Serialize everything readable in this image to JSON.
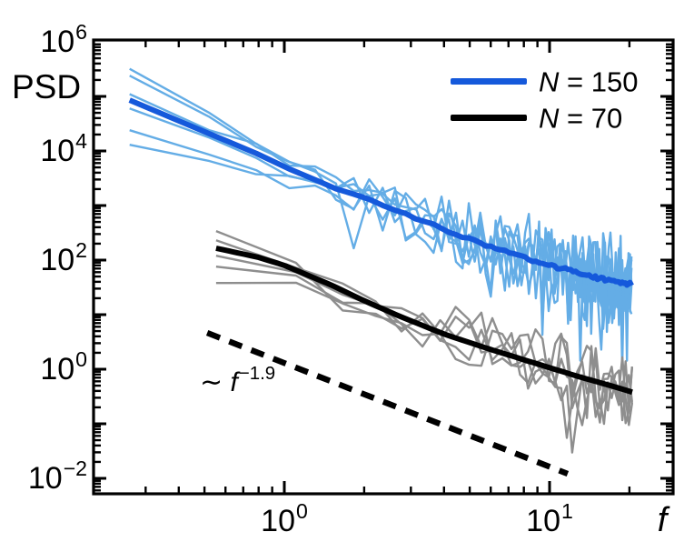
{
  "yaxis": {
    "label": "PSD",
    "ticks": [
      {
        "base": "10",
        "exp": "6"
      },
      {
        "base": "10",
        "exp": "4"
      },
      {
        "base": "10",
        "exp": "2"
      },
      {
        "base": "10",
        "exp": "0"
      },
      {
        "base": "10",
        "exp": "−2"
      }
    ]
  },
  "xaxis": {
    "label": "f",
    "ticks": [
      {
        "base": "10",
        "exp": "0"
      },
      {
        "base": "10",
        "exp": "1"
      }
    ]
  },
  "legend": {
    "items": [
      {
        "var": "N",
        "rest": " = 150",
        "color": "#1559db"
      },
      {
        "var": "N",
        "rest": " = 70",
        "color": "#000000"
      }
    ]
  },
  "annotation": {
    "tilde": "∼ ",
    "var": "f",
    "exp": "−1.9"
  },
  "chart_data": {
    "type": "line",
    "xscale": "log",
    "yscale": "log",
    "xlabel": "f",
    "ylabel": "PSD",
    "xlim": [
      0.19,
      29
    ],
    "ylim": [
      0.005,
      1000000
    ],
    "x_major_ticks": [
      1,
      10
    ],
    "y_major_ticks": [
      0.01,
      1,
      100,
      10000,
      1000000
    ],
    "grid": false,
    "legend_position": "upper right",
    "series": [
      {
        "id": "n150_mean",
        "name": "N = 150",
        "color": "#1559db",
        "width": 6,
        "points": [
          [
            0.261,
            86000
          ],
          [
            0.35,
            47000
          ],
          [
            0.5,
            23000
          ],
          [
            0.7,
            11500
          ],
          [
            1.0,
            5200
          ],
          [
            1.4,
            2600
          ],
          [
            2.0,
            1350
          ],
          [
            2.9,
            680
          ],
          [
            4.2,
            330
          ],
          [
            6.0,
            175
          ],
          [
            8.6,
            98
          ],
          [
            12,
            62
          ],
          [
            16,
            45
          ],
          [
            20.4,
            36
          ]
        ]
      },
      {
        "id": "n70_mean",
        "name": "N = 70",
        "color": "#000000",
        "width": 6,
        "points": [
          [
            0.553,
            165
          ],
          [
            0.8,
            112
          ],
          [
            1.0,
            80
          ],
          [
            1.5,
            35
          ],
          [
            2.0,
            18
          ],
          [
            2.7,
            9.5
          ],
          [
            4.0,
            4.4
          ],
          [
            6.0,
            2.3
          ],
          [
            9.0,
            1.25
          ],
          [
            13,
            0.72
          ],
          [
            17,
            0.5
          ],
          [
            20.5,
            0.38
          ]
        ]
      }
    ],
    "ensembles": [
      {
        "id": "n150_runs",
        "mean_ref": 0,
        "color": "#64ade6",
        "width": 2.4,
        "f0": 0.261,
        "n": 78,
        "starts": [
          320000,
          240000,
          110000,
          60000,
          24000,
          13000
        ],
        "seed": 7,
        "sigma_min": 0.04,
        "sigma_max": 0.55,
        "mix_decades": 0.9,
        "dip_prob": 0.05,
        "dip_extra": 1.6
      },
      {
        "id": "n70_runs",
        "mean_ref": 1,
        "color": "#8e8e8e",
        "width": 2.4,
        "f0": 0.553,
        "n": 37,
        "starts": [
          340,
          230,
          120,
          76,
          38
        ],
        "seed": 13,
        "sigma_min": 0.05,
        "sigma_max": 0.52,
        "mix_decades": 0.55,
        "dip_prob": 0.06,
        "dip_extra": 1.0
      }
    ],
    "guide": {
      "id": "powerlaw_guide",
      "label": "~ f^-1.9",
      "slope": -1.9,
      "style": "dashed",
      "color": "#000000",
      "width": 6.5,
      "points": [
        [
          0.512,
          4.64
        ],
        [
          11.7,
          0.0121
        ]
      ]
    },
    "mean_wiggle": {
      "sigma_min": 0.012,
      "sigma_max": 0.045,
      "seed": 3
    }
  }
}
